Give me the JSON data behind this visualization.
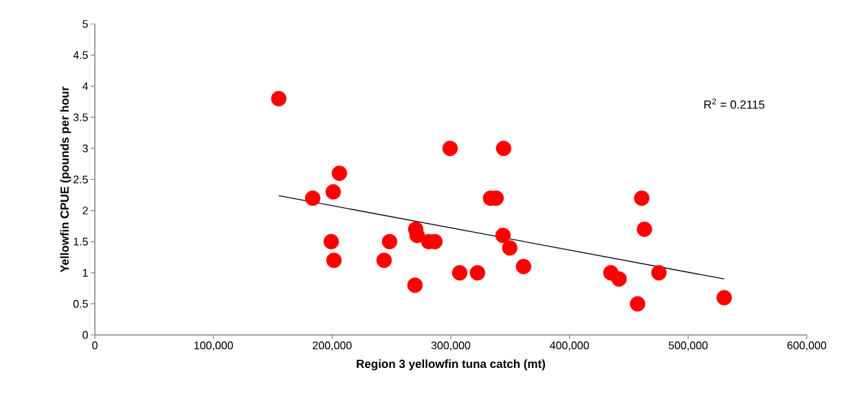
{
  "chart_data": {
    "type": "scatter",
    "xlabel": "Region 3 yellowfin tuna catch (mt)",
    "ylabel": "Yellowfin CPUE (pounds per hour",
    "xlim": [
      0,
      600000
    ],
    "ylim": [
      0,
      5
    ],
    "xticks": [
      0,
      {
        "value": 100000,
        "label": "100,000"
      },
      {
        "value": 200000,
        "label": "200,000"
      },
      {
        "value": 300000,
        "label": "300,000"
      },
      {
        "value": 400000,
        "label": "400,000"
      },
      {
        "value": 500000,
        "label": "500,000"
      },
      {
        "value": 600000,
        "label": "600,000"
      }
    ],
    "yticks": [
      0,
      0.5,
      1,
      1.5,
      2,
      2.5,
      3,
      3.5,
      4,
      4.5,
      5
    ],
    "grid": false,
    "annotations": [
      {
        "text": "R$^{2}$ = 0.2115"
      }
    ],
    "series": [
      {
        "marker": "circle",
        "color": "#ff0000",
        "x": [
          155000,
          183600,
          200900,
          206100,
          199200,
          201500,
          243800,
          248400,
          269800,
          270400,
          271600,
          281400,
          286600,
          299400,
          307500,
          322500,
          333500,
          338200,
          344500,
          344000,
          349700,
          361300,
          434900,
          441800,
          457400,
          460900,
          463200,
          475400,
          530400
        ],
        "values": [
          3.8,
          2.2,
          2.3,
          2.6,
          1.5,
          1.2,
          1.2,
          1.5,
          0.8,
          1.7,
          1.6,
          1.5,
          1.5,
          3.0,
          1.0,
          1.0,
          2.2,
          2.2,
          3.0,
          1.6,
          1.4,
          1.1,
          1.0,
          0.9,
          0.5,
          2.2,
          1.7,
          1.0,
          0.6
        ]
      },
      {
        "type": "line",
        "marker": "none",
        "color": "#000000",
        "x": [
          155000,
          530400
        ],
        "values": [
          2.24,
          0.9
        ]
      }
    ]
  }
}
